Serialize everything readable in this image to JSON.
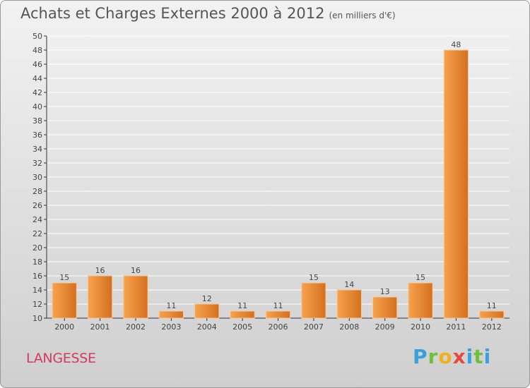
{
  "header": {
    "title": "Achats et Charges Externes 2000 à 2012",
    "subtitle": "(en milliers d'€)"
  },
  "footer": {
    "commune": "LANGESSE",
    "logo_text": "Proxiti"
  },
  "colors": {
    "bar_light": "#f7a24e",
    "bar_dark": "#d4701e",
    "bar_edge": "#f6c99a",
    "grid": "#ffffff",
    "axis": "#333333"
  },
  "chart_data": {
    "type": "bar",
    "categories": [
      "2000",
      "2001",
      "2002",
      "2003",
      "2004",
      "2005",
      "2006",
      "2007",
      "2008",
      "2009",
      "2010",
      "2011",
      "2012"
    ],
    "values": [
      15,
      16,
      16,
      11,
      12,
      11,
      11,
      15,
      14,
      13,
      15,
      48,
      11
    ],
    "title": "Achats et Charges Externes 2000 à 2012",
    "subtitle": "(en milliers d'€)",
    "xlabel": "",
    "ylabel": "",
    "ylim": [
      10,
      50
    ],
    "ytick_step": 2,
    "grid": true
  }
}
